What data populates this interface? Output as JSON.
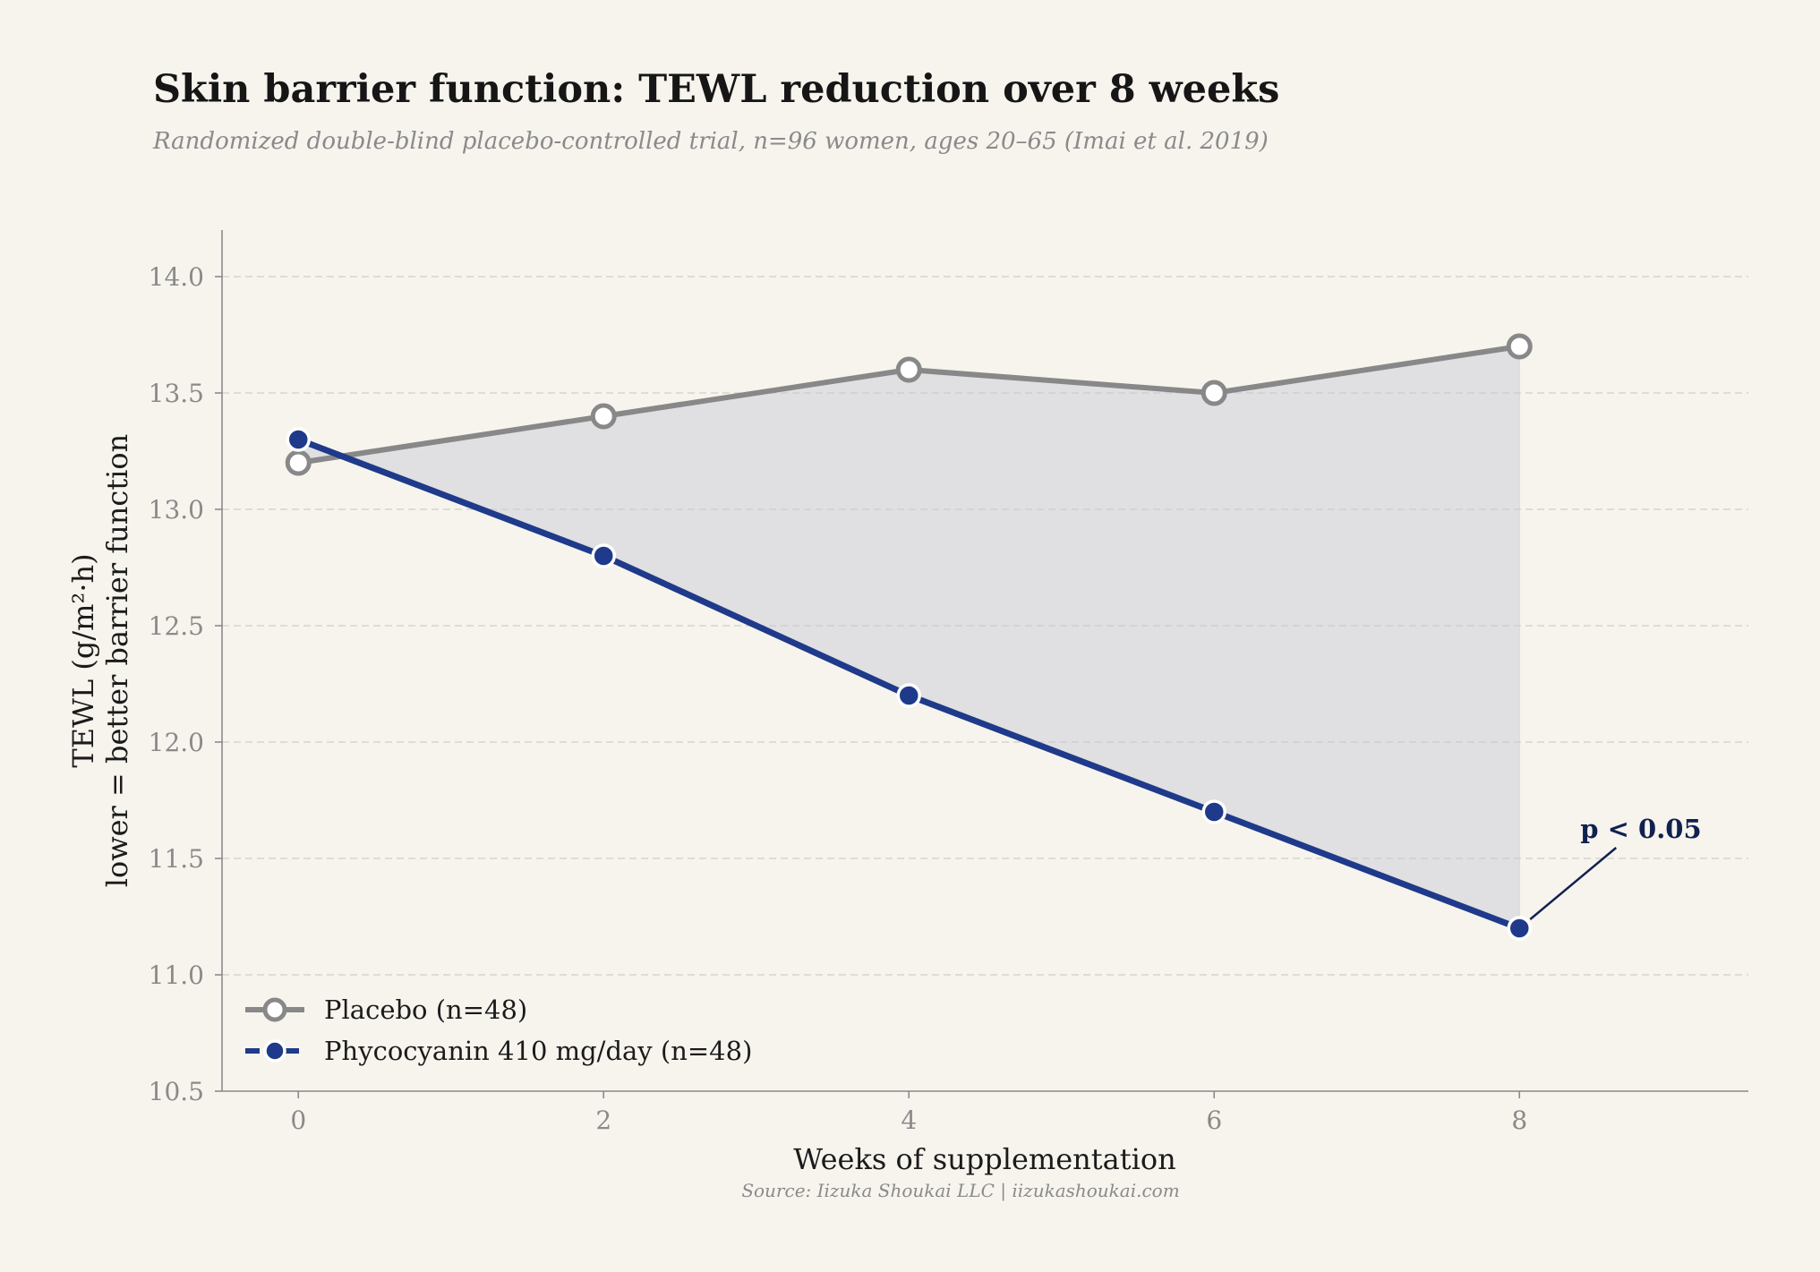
{
  "chart_data": {
    "type": "line",
    "title": "Skin barrier function: TEWL reduction over 8 weeks",
    "subtitle": "Randomized double-blind placebo-controlled trial, n=96 women, ages 20–65 (Imai et al. 2019)",
    "xlabel": "Weeks of supplementation",
    "ylabel_line1": "TEWL (g/m²·h)",
    "ylabel_line2": "lower = better barrier function",
    "x": [
      0,
      2,
      4,
      6,
      8
    ],
    "x_ticks": [
      "0",
      "2",
      "4",
      "6",
      "8"
    ],
    "y_ticks": [
      "10.5",
      "11.0",
      "11.5",
      "12.0",
      "12.5",
      "13.0",
      "13.5",
      "14.0"
    ],
    "xlim": [
      -0.5,
      9.5
    ],
    "ylim": [
      10.5,
      14.2
    ],
    "grid": "horizontal dashed",
    "shaded_region_between_series": true,
    "series": [
      {
        "name": "Placebo (n=48)",
        "values": [
          13.2,
          13.4,
          13.6,
          13.5,
          13.7
        ],
        "color": "#888888",
        "marker": "hollow-circle"
      },
      {
        "name": "Phycocyanin 410 mg/day (n=48)",
        "values": [
          13.3,
          12.8,
          12.2,
          11.7,
          11.2
        ],
        "color": "#1f3a8a",
        "marker": "filled-circle"
      }
    ],
    "annotation": {
      "text": "p < 0.05",
      "x": 8,
      "y": 11.2
    },
    "legend_position": "lower-left",
    "source": "Source: Iizuka Shoukai LLC | iizukashoukai.com"
  }
}
